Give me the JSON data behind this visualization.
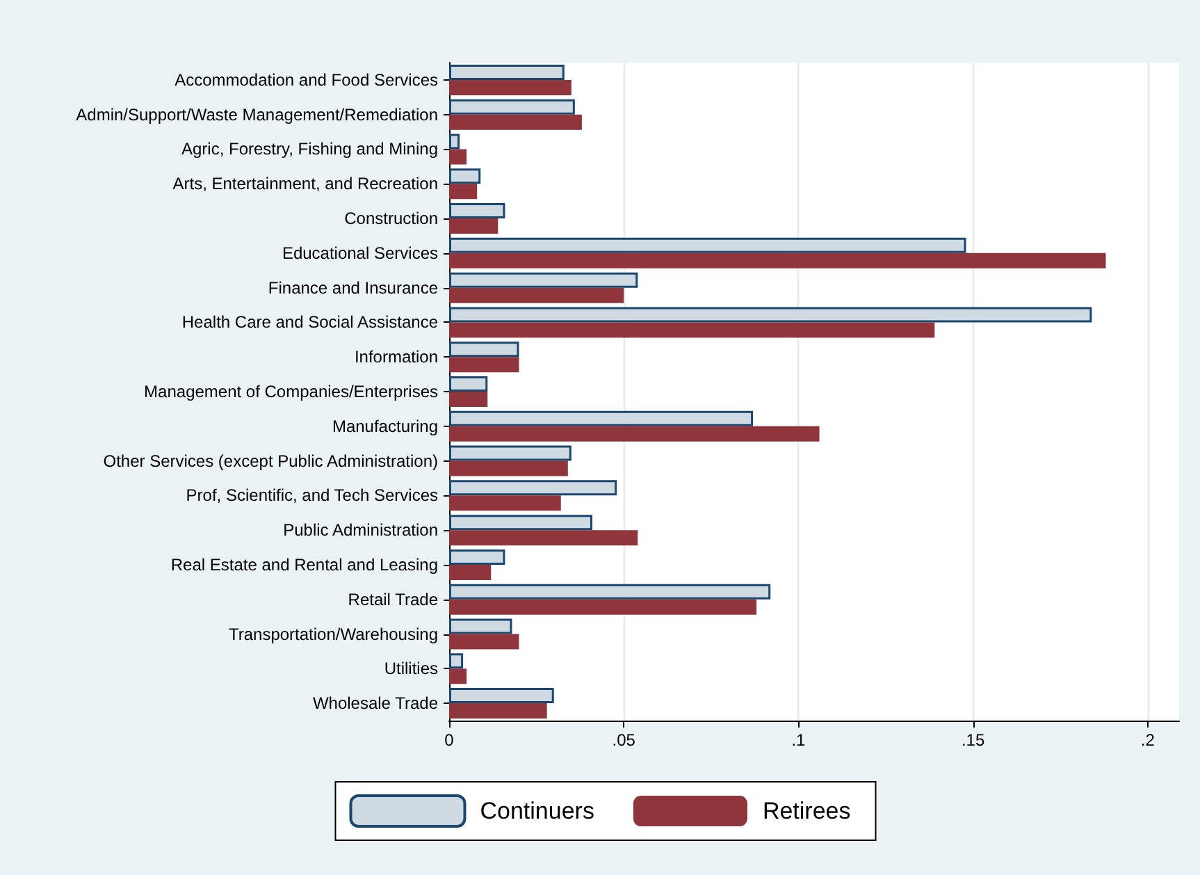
{
  "chart_data": {
    "type": "bar",
    "orientation": "horizontal",
    "categories": [
      "Accommodation and Food Services",
      "Admin/Support/Waste Management/Remediation",
      "Agric, Forestry, Fishing and Mining",
      "Arts, Entertainment, and Recreation",
      "Construction",
      "Educational Services",
      "Finance and Insurance",
      "Health Care and Social Assistance",
      "Information",
      "Management of Companies/Enterprises",
      "Manufacturing",
      "Other Services (except Public Administration)",
      "Prof, Scientific, and Tech Services",
      "Public Administration",
      "Real Estate and Rental and Leasing",
      "Retail Trade",
      "Transportation/Warehousing",
      "Utilities",
      "Wholesale Trade"
    ],
    "series": [
      {
        "name": "Continuers",
        "color": "#d0dae3",
        "values": [
          0.033,
          0.036,
          0.003,
          0.009,
          0.016,
          0.148,
          0.054,
          0.184,
          0.02,
          0.011,
          0.087,
          0.035,
          0.048,
          0.041,
          0.016,
          0.092,
          0.018,
          0.004,
          0.03
        ]
      },
      {
        "name": "Retirees",
        "color": "#90353b",
        "values": [
          0.035,
          0.038,
          0.005,
          0.008,
          0.014,
          0.188,
          0.05,
          0.139,
          0.02,
          0.011,
          0.106,
          0.034,
          0.032,
          0.054,
          0.012,
          0.088,
          0.02,
          0.005,
          0.028
        ]
      }
    ],
    "xlim": [
      0,
      0.209
    ],
    "xticks": [
      0,
      {
        "value": 0.05,
        "label": ".05"
      },
      {
        "value": 0.1,
        "label": ".1"
      },
      {
        "value": 0.15,
        "label": ".15"
      },
      {
        "value": 0.2,
        "label": ".2"
      }
    ],
    "grid": "x",
    "legend": "bottom"
  }
}
